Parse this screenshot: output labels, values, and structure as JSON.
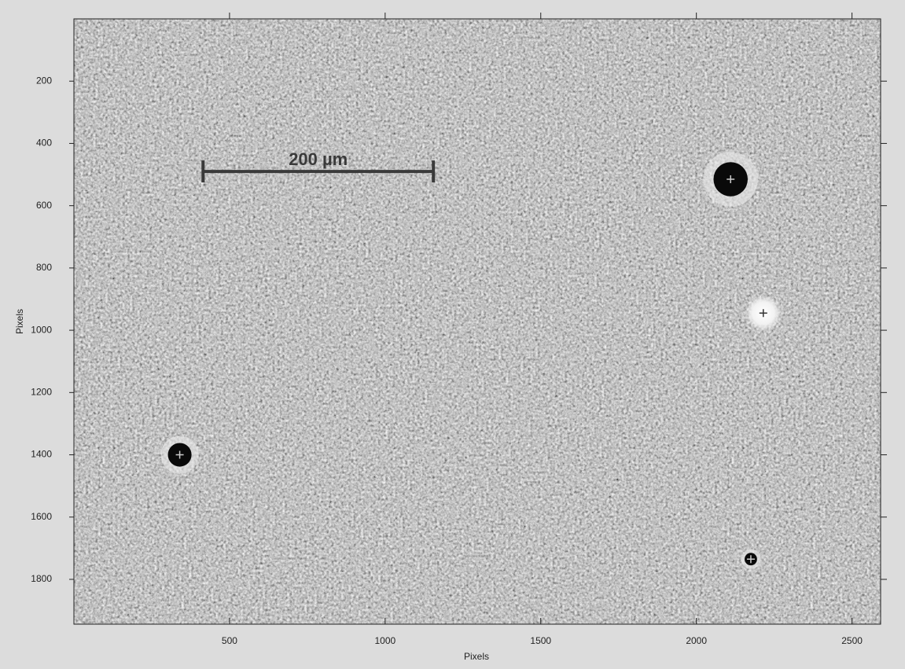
{
  "chart_data": {
    "type": "image",
    "xlabel": "Pixels",
    "ylabel": "Pixels",
    "xlim": [
      0,
      2592
    ],
    "ylim": [
      1944,
      0
    ],
    "xticks": [
      500,
      1000,
      1500,
      2000,
      2500
    ],
    "yticks": [
      200,
      400,
      600,
      800,
      1000,
      1200,
      1400,
      1600,
      1800
    ],
    "scale_bar": {
      "label": "200 µm",
      "x": [
        415,
        1155
      ],
      "y": 490
    },
    "features": {
      "x": [
        2110,
        340,
        2215,
        2175
      ],
      "y": [
        515,
        1400,
        945,
        1735
      ],
      "size": [
        55,
        38,
        60,
        20
      ],
      "kind": [
        "dark",
        "dark",
        "bright",
        "dark"
      ]
    }
  }
}
